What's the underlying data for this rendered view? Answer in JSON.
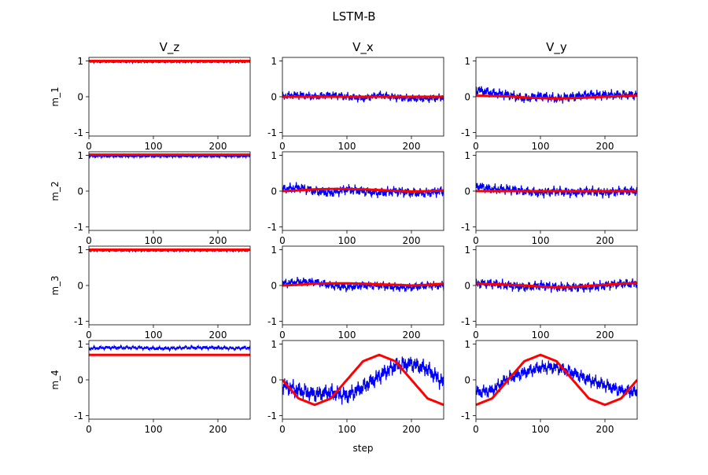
{
  "chart_data": {
    "type": "line",
    "title": "LSTM-B",
    "xlabel": "step",
    "grid": false,
    "legend": "none",
    "colors": {
      "reference": "#ff0000",
      "estimate": "#0000ff"
    },
    "column_titles": [
      "V_z",
      "V_x",
      "V_y"
    ],
    "row_labels": [
      "m_1",
      "m_2",
      "m_3",
      "m_4"
    ],
    "xlim": [
      0,
      250
    ],
    "ylim": [
      -1.1,
      1.1
    ],
    "xticks": [
      0,
      100,
      200
    ],
    "yticks": [
      -1,
      0,
      1
    ],
    "step": [
      0,
      25,
      50,
      75,
      100,
      125,
      150,
      175,
      200,
      225,
      250
    ],
    "panels": [
      {
        "row": "m_1",
        "col": "V_z",
        "reference": [
          1.0,
          1.0,
          1.0,
          1.0,
          1.0,
          1.0,
          1.0,
          1.0,
          1.0,
          1.0,
          1.0
        ],
        "estimate": [
          0.98,
          0.98,
          0.98,
          0.98,
          0.98,
          0.98,
          0.98,
          0.98,
          0.98,
          0.98,
          0.98
        ],
        "spread": 0.03
      },
      {
        "row": "m_1",
        "col": "V_x",
        "reference": [
          0.0,
          0.0,
          0.0,
          0.0,
          0.0,
          0.0,
          0.0,
          0.0,
          0.0,
          0.0,
          0.0
        ],
        "estimate": [
          0.02,
          0.05,
          0.0,
          0.05,
          0.0,
          -0.05,
          0.05,
          -0.02,
          -0.05,
          -0.05,
          -0.02
        ],
        "spread": 0.12
      },
      {
        "row": "m_1",
        "col": "V_y",
        "reference": [
          0.03,
          0.02,
          0.01,
          -0.02,
          -0.04,
          -0.05,
          -0.04,
          -0.02,
          0.0,
          0.02,
          0.03
        ],
        "estimate": [
          0.2,
          0.1,
          0.05,
          -0.05,
          0.02,
          -0.05,
          0.0,
          0.05,
          0.05,
          0.05,
          0.05
        ],
        "spread": 0.15
      },
      {
        "row": "m_2",
        "col": "V_z",
        "reference": [
          1.02,
          1.02,
          1.02,
          1.02,
          1.02,
          1.02,
          1.02,
          1.02,
          1.02,
          1.02,
          1.02
        ],
        "estimate": [
          0.98,
          0.98,
          0.98,
          0.98,
          0.98,
          0.98,
          0.98,
          0.98,
          0.98,
          0.98,
          0.98
        ],
        "spread": 0.04
      },
      {
        "row": "m_2",
        "col": "V_x",
        "reference": [
          0.0,
          0.02,
          0.05,
          0.06,
          0.06,
          0.05,
          0.03,
          0.01,
          -0.01,
          0.0,
          0.02
        ],
        "estimate": [
          0.05,
          0.1,
          0.0,
          -0.05,
          0.05,
          0.0,
          -0.05,
          0.0,
          -0.05,
          -0.05,
          0.0
        ],
        "spread": 0.15
      },
      {
        "row": "m_2",
        "col": "V_y",
        "reference": [
          0.0,
          0.0,
          0.0,
          0.0,
          0.0,
          0.0,
          0.0,
          0.0,
          0.0,
          0.0,
          0.0
        ],
        "estimate": [
          0.15,
          0.05,
          0.05,
          0.0,
          -0.05,
          0.0,
          -0.05,
          0.0,
          -0.05,
          0.0,
          0.0
        ],
        "spread": 0.15
      },
      {
        "row": "m_3",
        "col": "V_z",
        "reference": [
          1.0,
          1.0,
          1.0,
          1.0,
          1.0,
          1.0,
          1.0,
          1.0,
          1.0,
          1.0,
          1.0
        ],
        "estimate": [
          0.98,
          0.98,
          0.98,
          0.98,
          0.98,
          0.98,
          0.98,
          0.98,
          0.98,
          0.98,
          0.98
        ],
        "spread": 0.03
      },
      {
        "row": "m_3",
        "col": "V_x",
        "reference": [
          0.0,
          0.02,
          0.05,
          0.06,
          0.06,
          0.05,
          0.03,
          0.02,
          0.0,
          0.02,
          0.05
        ],
        "estimate": [
          0.05,
          0.1,
          0.1,
          0.0,
          -0.05,
          0.0,
          0.0,
          -0.05,
          -0.05,
          0.0,
          0.0
        ],
        "spread": 0.13
      },
      {
        "row": "m_3",
        "col": "V_y",
        "reference": [
          0.05,
          0.04,
          0.02,
          0.0,
          -0.03,
          -0.05,
          -0.04,
          -0.01,
          0.02,
          0.05,
          0.07
        ],
        "estimate": [
          0.05,
          0.05,
          0.0,
          -0.05,
          0.0,
          -0.05,
          -0.05,
          -0.05,
          0.0,
          0.05,
          0.05
        ],
        "spread": 0.15
      },
      {
        "row": "m_4",
        "col": "V_z",
        "reference": [
          0.7,
          0.7,
          0.7,
          0.7,
          0.7,
          0.7,
          0.7,
          0.7,
          0.7,
          0.7,
          0.7
        ],
        "estimate": [
          0.88,
          0.9,
          0.9,
          0.9,
          0.88,
          0.88,
          0.9,
          0.9,
          0.9,
          0.88,
          0.9
        ],
        "spread": 0.06
      },
      {
        "row": "m_4",
        "col": "V_x",
        "reference": [
          0.0,
          -0.52,
          -0.7,
          -0.52,
          0.0,
          0.52,
          0.7,
          0.52,
          0.0,
          -0.52,
          -0.7
        ],
        "estimate": [
          -0.15,
          -0.3,
          -0.4,
          -0.35,
          -0.45,
          -0.2,
          0.1,
          0.4,
          0.45,
          0.3,
          -0.1
        ],
        "spread": 0.25
      },
      {
        "row": "m_4",
        "col": "V_y",
        "reference": [
          -0.7,
          -0.52,
          0.0,
          0.52,
          0.7,
          0.52,
          0.0,
          -0.52,
          -0.7,
          -0.52,
          0.0
        ],
        "estimate": [
          -0.35,
          -0.3,
          0.05,
          0.2,
          0.35,
          0.35,
          0.2,
          0.0,
          -0.15,
          -0.3,
          -0.35
        ],
        "spread": 0.2
      }
    ]
  }
}
